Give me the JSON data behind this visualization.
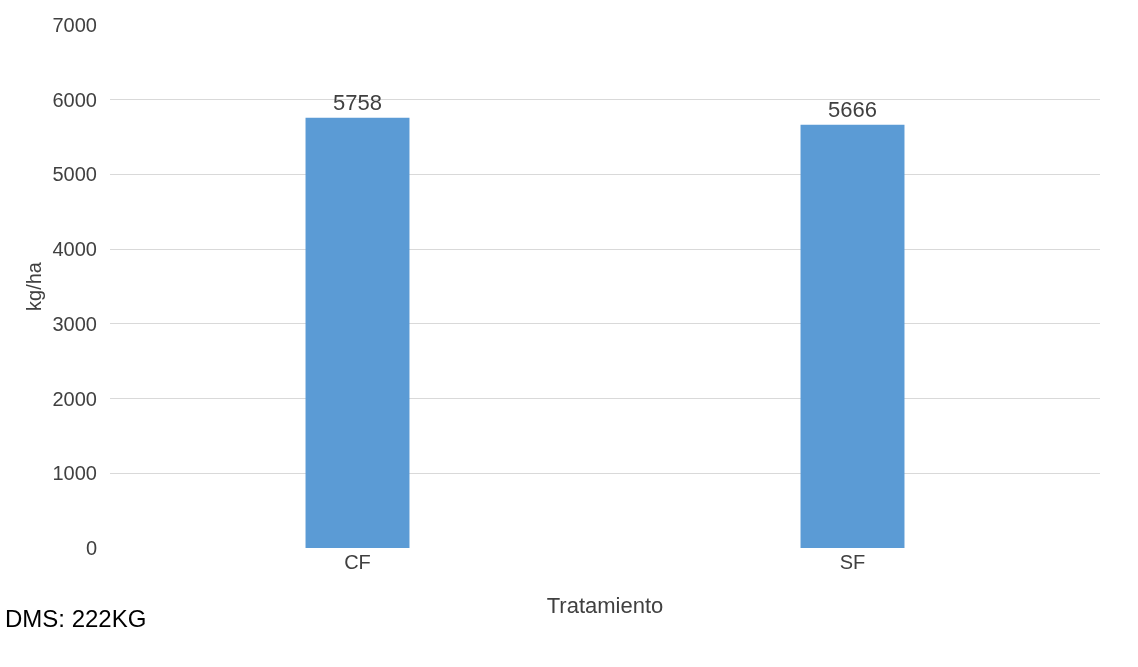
{
  "chart_data": {
    "type": "bar",
    "xlabel": "Tratamiento",
    "ylabel": "kg/ha",
    "categories": [
      "CF",
      "SF"
    ],
    "values": [
      5758,
      5666
    ],
    "color": "#5b9bd5",
    "ylim": [
      0,
      7000
    ],
    "yticks": [
      0,
      1000,
      2000,
      3000,
      4000,
      5000,
      6000,
      7000
    ],
    "grid": "y",
    "data_labels": true,
    "legend": false,
    "annotations": [
      "DMS: 222KG"
    ]
  }
}
